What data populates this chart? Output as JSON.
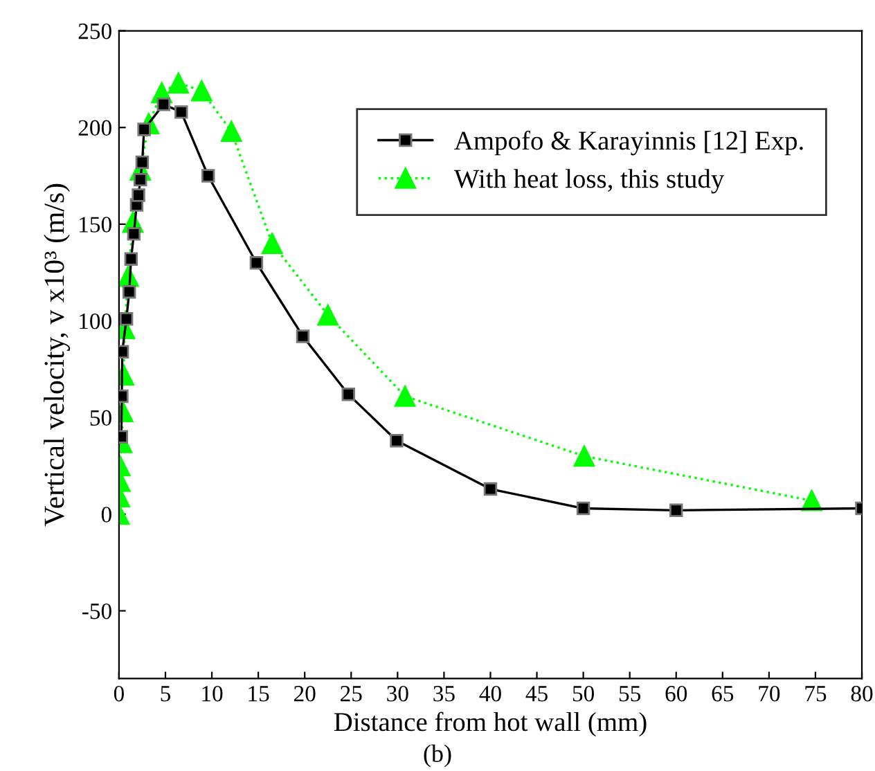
{
  "chart_data": {
    "type": "line",
    "xlabel": "Distance from hot wall (mm)",
    "ylabel": "Vertical velocity, v x10³ (m/s)",
    "annotations": [
      "(b)"
    ],
    "xlim": [
      0,
      80
    ],
    "xticks": [
      0,
      5,
      10,
      15,
      20,
      25,
      30,
      35,
      40,
      45,
      50,
      55,
      60,
      65,
      70,
      75,
      80
    ],
    "ylim": [
      -85,
      250
    ],
    "yticks": [
      -50,
      0,
      50,
      100,
      150,
      200,
      250
    ],
    "grid": false,
    "legend": "top right",
    "series": [
      {
        "name": "Ampofo & Karayinnis [12] Exp.",
        "color": "#000000",
        "marker": "square",
        "line_style": "solid",
        "x": [
          0.25,
          0.3,
          0.35,
          0.8,
          1.1,
          1.3,
          1.6,
          1.9,
          2.1,
          2.3,
          2.5,
          2.7,
          4.8,
          6.7,
          9.6,
          14.8,
          19.8,
          24.7,
          29.9,
          40,
          50,
          60,
          80
        ],
        "values": [
          40,
          61,
          84,
          101,
          115,
          132,
          145,
          160,
          165,
          173,
          182,
          199,
          212,
          208,
          175,
          130,
          92,
          62,
          38,
          13,
          3,
          2,
          3
        ]
      },
      {
        "name": "With heat loss, this study",
        "color": "#00ff00",
        "marker": "triangle",
        "line_style": "dotted",
        "x": [
          0.0,
          0.05,
          0.1,
          0.1,
          0.3,
          0.4,
          0.5,
          0.6,
          1.0,
          1.5,
          2.3,
          3.2,
          4.6,
          6.4,
          8.9,
          12.1,
          16.5,
          22.5,
          30.8,
          50.1,
          74.6
        ],
        "values": [
          0,
          9,
          17,
          25,
          37,
          53,
          72,
          96,
          123,
          151,
          178,
          202,
          218,
          223,
          219,
          198,
          140,
          103,
          61,
          30,
          7
        ]
      }
    ]
  }
}
